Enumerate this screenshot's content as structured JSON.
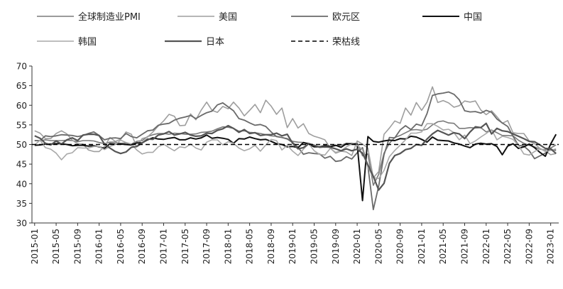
{
  "chart_data": {
    "type": "line",
    "title": "",
    "xlabel": "",
    "ylabel": "",
    "ylim": [
      30,
      70
    ],
    "yticks": [
      30,
      35,
      40,
      45,
      50,
      55,
      60,
      65,
      70
    ],
    "grid": false,
    "legend_placement": "top",
    "start_month": "2015-01",
    "x_tick_labels": [
      "2015-01",
      "2015-05",
      "2015-09",
      "2016-01",
      "2016-05",
      "2016-09",
      "2017-01",
      "2017-05",
      "2017-09",
      "2018-01",
      "2018-05",
      "2018-09",
      "2019-01",
      "2019-05",
      "2019-09",
      "2020-01",
      "2020-05",
      "2020-09",
      "2021-01",
      "2021-05",
      "2021-09",
      "2022-01",
      "2022-05",
      "2022-09",
      "2023-01"
    ],
    "series": [
      {
        "name": "全球制造业PMI",
        "color": "#7a7a7a",
        "dash": "",
        "width": 1.6,
        "values": [
          51.0,
          51.0,
          51.2,
          51.0,
          51.0,
          51.0,
          51.1,
          51.0,
          50.7,
          51.0,
          51.0,
          50.9,
          50.5,
          50.2,
          50.6,
          50.6,
          50.3,
          50.4,
          50.1,
          50.8,
          51.0,
          52.0,
          52.5,
          52.8,
          52.8,
          52.6,
          52.9,
          52.8,
          52.6,
          52.6,
          52.7,
          53.1,
          53.2,
          53.4,
          54.0,
          54.5,
          54.4,
          54.1,
          53.4,
          53.5,
          53.1,
          53.0,
          52.8,
          52.5,
          52.2,
          52.1,
          51.8,
          51.5,
          50.8,
          50.6,
          50.5,
          50.3,
          49.8,
          49.4,
          49.3,
          49.4,
          49.7,
          49.8,
          50.3,
          50.1,
          50.4,
          47.1,
          47.6,
          39.6,
          42.4,
          47.8,
          50.3,
          51.8,
          52.3,
          53.0,
          53.7,
          53.8,
          53.6,
          53.9,
          55.0,
          55.8,
          56.0,
          55.5,
          55.4,
          54.1,
          54.1,
          54.3,
          54.2,
          54.3,
          53.2,
          53.7,
          53.0,
          52.3,
          52.3,
          52.2,
          51.1,
          50.3,
          49.8,
          49.4,
          48.8,
          48.6,
          49.1,
          49.9
        ]
      },
      {
        "name": "美国",
        "color": "#9e9e9e",
        "dash": "",
        "width": 1.6,
        "values": [
          53.5,
          52.9,
          51.5,
          51.5,
          52.8,
          53.5,
          52.7,
          51.1,
          50.2,
          50.1,
          48.6,
          48.2,
          48.2,
          49.5,
          51.8,
          50.8,
          51.3,
          53.2,
          52.6,
          49.4,
          51.5,
          51.9,
          53.2,
          54.7,
          56.0,
          57.7,
          57.2,
          54.8,
          54.9,
          57.8,
          56.3,
          58.8,
          60.8,
          58.7,
          58.2,
          59.7,
          59.1,
          60.8,
          59.3,
          57.3,
          58.7,
          60.2,
          58.1,
          61.3,
          59.8,
          57.7,
          59.3,
          54.3,
          56.6,
          54.2,
          55.3,
          52.8,
          52.1,
          51.7,
          51.2,
          49.1,
          47.8,
          48.3,
          48.1,
          47.2,
          50.9,
          50.1,
          49.1,
          41.5,
          43.1,
          52.6,
          54.2,
          56.0,
          55.4,
          59.3,
          57.5,
          60.7,
          58.7,
          60.8,
          64.7,
          60.7,
          61.2,
          60.6,
          59.5,
          59.9,
          61.1,
          60.8,
          61.1,
          58.8,
          57.6,
          58.6,
          57.1,
          55.4,
          56.1,
          53.0,
          52.8,
          52.8,
          50.9,
          50.2,
          49.0,
          48.4,
          47.4,
          47.7
        ]
      },
      {
        "name": "欧元区",
        "color": "#6a6a6a",
        "dash": "",
        "width": 1.8,
        "values": [
          51.0,
          51.0,
          52.2,
          52.0,
          52.2,
          52.5,
          52.4,
          52.3,
          52.0,
          52.3,
          52.8,
          53.2,
          52.3,
          51.2,
          51.6,
          51.7,
          51.5,
          52.8,
          52.0,
          51.7,
          52.6,
          53.5,
          53.7,
          54.9,
          55.2,
          55.4,
          56.2,
          56.7,
          57.0,
          57.4,
          56.6,
          57.4,
          58.1,
          58.5,
          60.1,
          60.6,
          59.6,
          58.6,
          56.6,
          56.2,
          55.5,
          54.9,
          55.1,
          54.6,
          53.2,
          52.0,
          51.8,
          51.4,
          50.5,
          49.3,
          47.5,
          47.9,
          47.7,
          47.6,
          46.5,
          47.0,
          45.7,
          45.9,
          46.9,
          46.3,
          47.9,
          49.2,
          44.5,
          33.4,
          39.4,
          47.4,
          51.8,
          51.7,
          53.7,
          54.8,
          53.8,
          55.2,
          54.8,
          57.9,
          62.5,
          62.9,
          63.1,
          63.4,
          62.8,
          61.4,
          58.6,
          58.3,
          58.4,
          58.0,
          58.7,
          58.2,
          56.5,
          55.5,
          54.6,
          52.1,
          49.8,
          49.6,
          48.4,
          46.4,
          47.1,
          47.8,
          48.8,
          48.5
        ]
      },
      {
        "name": "中国",
        "color": "#111111",
        "dash": "",
        "width": 2.0,
        "values": [
          49.8,
          49.9,
          50.1,
          50.1,
          50.2,
          50.2,
          50.0,
          49.7,
          49.8,
          49.8,
          49.6,
          49.7,
          49.4,
          49.0,
          50.2,
          50.1,
          50.1,
          50.0,
          49.9,
          50.4,
          50.4,
          51.2,
          51.7,
          51.4,
          51.3,
          51.6,
          51.8,
          51.2,
          51.2,
          51.7,
          51.4,
          51.7,
          52.4,
          51.6,
          51.8,
          51.6,
          51.3,
          50.3,
          51.5,
          51.4,
          51.9,
          51.5,
          51.2,
          51.3,
          50.8,
          50.2,
          50.0,
          49.4,
          49.5,
          49.2,
          50.5,
          50.1,
          49.4,
          49.4,
          49.7,
          49.5,
          49.8,
          49.3,
          50.2,
          50.2,
          50.0,
          35.7,
          52.0,
          50.8,
          50.6,
          50.9,
          51.1,
          51.0,
          51.5,
          51.4,
          52.1,
          51.9,
          51.3,
          50.6,
          51.9,
          51.1,
          51.0,
          50.9,
          50.4,
          50.1,
          49.6,
          49.2,
          50.1,
          50.3,
          50.1,
          50.2,
          49.5,
          47.4,
          49.6,
          50.2,
          49.0,
          49.4,
          50.1,
          49.2,
          48.0,
          47.0,
          50.1,
          52.6
        ]
      },
      {
        "name": "韩国",
        "color": "#a9a9a9",
        "dash": "",
        "width": 1.6,
        "values": [
          49.9,
          51.1,
          49.2,
          48.8,
          47.8,
          46.1,
          47.6,
          47.9,
          49.2,
          49.1,
          49.1,
          49.5,
          49.5,
          48.7,
          49.5,
          50.0,
          51.1,
          50.5,
          50.1,
          48.6,
          47.6,
          48.0,
          48.0,
          49.4,
          50.1,
          49.2,
          48.4,
          49.4,
          49.2,
          50.1,
          49.1,
          48.6,
          50.6,
          51.2,
          51.2,
          49.9,
          50.7,
          50.3,
          49.1,
          48.4,
          48.9,
          49.8,
          48.3,
          49.9,
          51.3,
          51.0,
          48.6,
          49.8,
          48.3,
          47.2,
          48.8,
          50.2,
          48.4,
          47.5,
          47.3,
          49.0,
          48.0,
          48.4,
          49.4,
          50.1,
          49.8,
          48.7,
          44.2,
          41.6,
          41.3,
          43.4,
          46.9,
          48.5,
          49.8,
          51.2,
          52.9,
          52.9,
          53.2,
          55.3,
          55.3,
          54.6,
          53.7,
          53.9,
          53.0,
          51.2,
          52.4,
          50.2,
          50.9,
          51.9,
          52.8,
          53.8,
          51.2,
          52.1,
          51.8,
          51.3,
          49.8,
          47.6,
          47.3,
          48.2,
          49.0,
          48.2,
          48.5,
          48.9
        ]
      },
      {
        "name": "日本",
        "color": "#555555",
        "dash": "",
        "width": 2.2,
        "values": [
          52.2,
          51.6,
          50.3,
          49.9,
          50.9,
          50.1,
          51.2,
          51.7,
          51.0,
          52.4,
          52.6,
          52.6,
          52.3,
          50.1,
          49.1,
          48.2,
          47.7,
          48.1,
          49.3,
          49.5,
          50.4,
          51.4,
          51.3,
          52.4,
          52.7,
          53.3,
          52.4,
          52.7,
          53.1,
          52.4,
          52.1,
          52.2,
          52.9,
          52.8,
          53.6,
          54.0,
          54.8,
          54.1,
          53.1,
          53.8,
          52.8,
          53.0,
          52.3,
          52.5,
          52.5,
          52.9,
          52.2,
          52.6,
          50.3,
          48.9,
          49.2,
          50.2,
          49.8,
          49.3,
          49.4,
          49.3,
          48.9,
          48.4,
          48.9,
          48.4,
          48.8,
          47.8,
          44.8,
          41.9,
          38.4,
          40.1,
          45.2,
          47.2,
          47.7,
          48.7,
          49.0,
          50.0,
          49.8,
          51.4,
          52.7,
          53.6,
          53.0,
          52.4,
          53.0,
          52.7,
          51.5,
          53.2,
          54.5,
          54.3,
          55.4,
          52.7,
          54.1,
          53.5,
          53.3,
          52.7,
          52.1,
          51.5,
          50.8,
          50.7,
          49.9,
          49.0,
          48.9,
          47.7
        ]
      },
      {
        "name": "荣枯线",
        "color": "#000000",
        "dash": "6,4",
        "width": 1.5,
        "values": "const:50"
      }
    ]
  }
}
